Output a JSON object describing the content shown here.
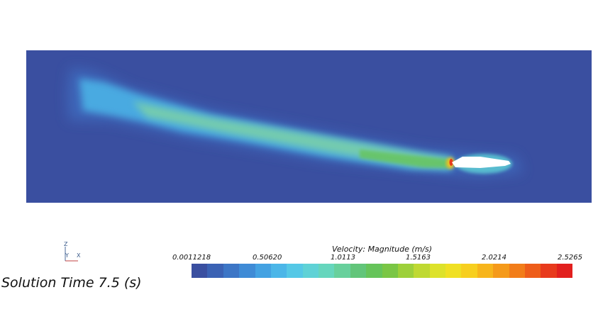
{
  "annotation": {
    "solution_time": "Solution Time 7.5 (s)"
  },
  "axes_triad": {
    "z_label": "Z",
    "y_label": "Y",
    "x_label": "X"
  },
  "legend": {
    "title": "Velocity: Magnitude (m/s)",
    "min": 0.0011218,
    "max": 2.5265,
    "tick_labels": [
      "0.0011218",
      "0.50620",
      "1.0113",
      "1.5163",
      "2.0214",
      "2.5265"
    ],
    "colors": [
      "#3a4fa0",
      "#3b62b4",
      "#3d76c6",
      "#3f8bd6",
      "#44a2e2",
      "#4bb6e8",
      "#55c8e6",
      "#5fd2d6",
      "#66d6bd",
      "#68d09c",
      "#62c57a",
      "#66c45a",
      "#7ac645",
      "#9dd03a",
      "#bfd932",
      "#dde22b",
      "#f0e024",
      "#f7cf1f",
      "#f7b51c",
      "#f59a1a",
      "#f27d19",
      "#ee5d1a",
      "#e83a1c",
      "#e2201e"
    ]
  },
  "colors": {
    "background_flow": "#3a4fa0",
    "vehicle": "#ffffff"
  }
}
